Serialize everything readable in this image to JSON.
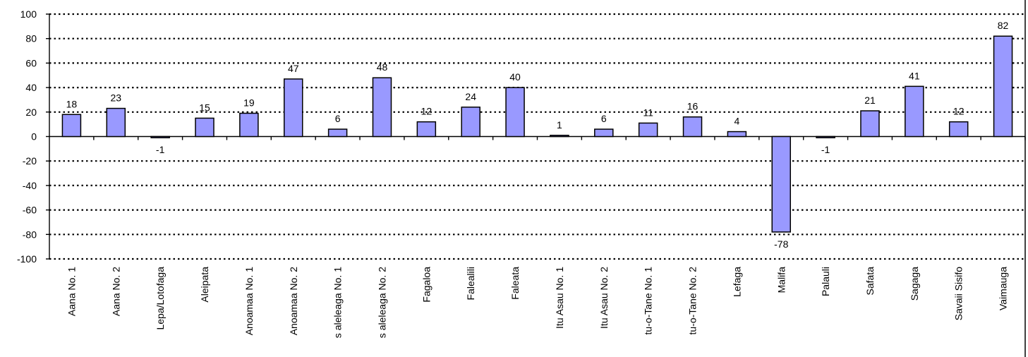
{
  "chart_data": {
    "type": "bar",
    "title": "",
    "xlabel": "",
    "ylabel": "",
    "ylim": [
      -100,
      100
    ],
    "yticks": [
      100,
      80,
      60,
      40,
      20,
      0,
      -20,
      -40,
      -60,
      -80,
      -100
    ],
    "grid": true,
    "legend": "none",
    "bar_color": "#9999ff",
    "categories": [
      "Aana No. 1",
      "Aana No. 2",
      "Lepa/Lotofaga",
      "Aleipata",
      "Anoamaa No. 1",
      "Anoamaa No. 2",
      "s aleleaga No. 1",
      "s aleleaga No. 2",
      "Fagaloa",
      "Falealili",
      "Faleata",
      "Itu Asau No. 1",
      "Itu Asau No. 2",
      "tu-o-Tane No. 1",
      "tu-o-Tane No. 2",
      "Lefaga",
      "Malifa",
      "Palauli",
      "Safata",
      "Sagaga",
      "Savaii Sisifo",
      "Vaimauga"
    ],
    "values": [
      18,
      23,
      -1,
      15,
      19,
      47,
      6,
      48,
      12,
      24,
      40,
      1,
      6,
      11,
      16,
      4,
      -78,
      -1,
      21,
      41,
      12,
      82
    ]
  }
}
